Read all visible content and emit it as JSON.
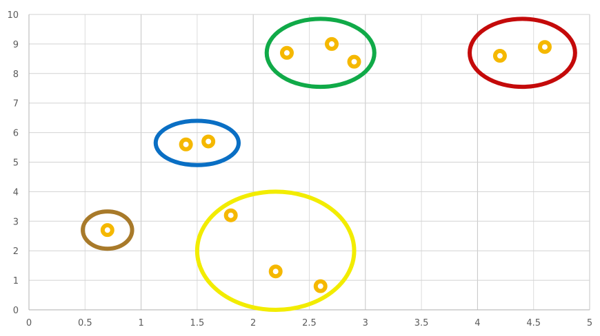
{
  "chart_data": {
    "type": "scatter",
    "title": "",
    "xlabel": "",
    "ylabel": "",
    "xlim": [
      0,
      5
    ],
    "ylim": [
      0,
      10
    ],
    "x_ticks": [
      "0",
      "0.5",
      "1",
      "1.5",
      "2",
      "2.5",
      "3",
      "3.5",
      "4",
      "4.5",
      "5"
    ],
    "y_ticks": [
      "0",
      "1",
      "2",
      "3",
      "4",
      "5",
      "6",
      "7",
      "8",
      "9",
      "10"
    ],
    "grid": true,
    "legend": "none",
    "marker_color": "#f5b800",
    "points": [
      {
        "x": 0.7,
        "y": 2.7
      },
      {
        "x": 1.4,
        "y": 5.6
      },
      {
        "x": 1.6,
        "y": 5.7
      },
      {
        "x": 1.8,
        "y": 3.2
      },
      {
        "x": 2.2,
        "y": 1.3
      },
      {
        "x": 2.3,
        "y": 8.7
      },
      {
        "x": 2.6,
        "y": 0.8
      },
      {
        "x": 2.7,
        "y": 9.0
      },
      {
        "x": 2.9,
        "y": 8.4
      },
      {
        "x": 4.2,
        "y": 8.6
      },
      {
        "x": 4.6,
        "y": 8.9
      }
    ],
    "clusters": [
      {
        "color": "#a87a2a",
        "cx": 0.7,
        "cy": 2.7,
        "rx": 0.22,
        "ry": 0.63
      },
      {
        "color": "#0a6fc4",
        "cx": 1.5,
        "cy": 5.65,
        "rx": 0.37,
        "ry": 0.75
      },
      {
        "color": "#f2ec00",
        "cx": 2.2,
        "cy": 2.0,
        "rx": 0.7,
        "ry": 2.0
      },
      {
        "color": "#10aa48",
        "cx": 2.6,
        "cy": 8.7,
        "rx": 0.48,
        "ry": 1.15
      },
      {
        "color": "#c40a0a",
        "cx": 4.4,
        "cy": 8.7,
        "rx": 0.47,
        "ry": 1.15
      }
    ]
  }
}
